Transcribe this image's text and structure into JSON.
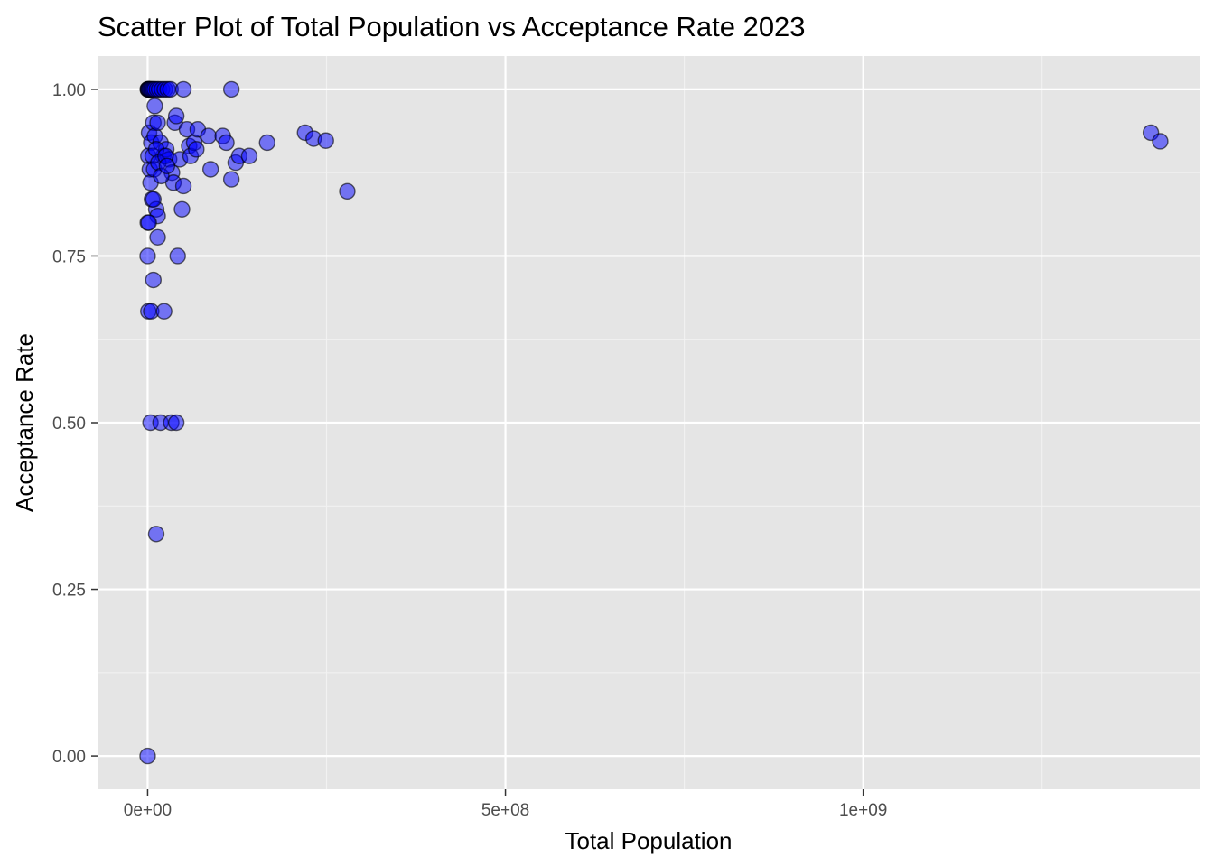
{
  "chart_data": {
    "type": "scatter",
    "title": "Scatter Plot of Total Population vs Acceptance Rate 2023",
    "xlabel": "Total Population",
    "ylabel": "Acceptance Rate",
    "xlim": [
      -70000000,
      1470000000
    ],
    "ylim": [
      -0.05,
      1.05
    ],
    "x_ticks": [
      0,
      500000000,
      1000000000
    ],
    "x_tick_labels": [
      "0e+00",
      "5e+08",
      "1e+09"
    ],
    "y_ticks": [
      0,
      0.25,
      0.5,
      0.75,
      1.0
    ],
    "y_tick_labels": [
      "0.00",
      "0.25",
      "0.50",
      "0.75",
      "1.00"
    ],
    "grid": true,
    "colors": {
      "panel": "#e5e5e5",
      "grid_major": "#ffffff",
      "grid_minor": "#f2f2f2",
      "point_fill": "#0000ff",
      "point_stroke": "#000000",
      "tick": "#333333"
    },
    "points": [
      {
        "x": 200000,
        "y": 1.0
      },
      {
        "x": 600000,
        "y": 1.0
      },
      {
        "x": 1000000,
        "y": 1.0
      },
      {
        "x": 2000000,
        "y": 1.0
      },
      {
        "x": 3000000,
        "y": 1.0
      },
      {
        "x": 4500000,
        "y": 1.0
      },
      {
        "x": 6000000,
        "y": 1.0
      },
      {
        "x": 8000000,
        "y": 1.0
      },
      {
        "x": 10000000,
        "y": 1.0
      },
      {
        "x": 13000000,
        "y": 1.0
      },
      {
        "x": 16000000,
        "y": 1.0
      },
      {
        "x": 20000000,
        "y": 1.0
      },
      {
        "x": 24000000,
        "y": 1.0
      },
      {
        "x": 28000000,
        "y": 1.0
      },
      {
        "x": 32000000,
        "y": 1.0
      },
      {
        "x": 50000000,
        "y": 1.0
      },
      {
        "x": 117000000,
        "y": 1.0
      },
      {
        "x": 2000000,
        "y": 0.935
      },
      {
        "x": 5000000,
        "y": 0.92
      },
      {
        "x": 8000000,
        "y": 0.95
      },
      {
        "x": 10000000,
        "y": 0.93
      },
      {
        "x": 14000000,
        "y": 0.95
      },
      {
        "x": 18000000,
        "y": 0.92
      },
      {
        "x": 22000000,
        "y": 0.9
      },
      {
        "x": 26000000,
        "y": 0.91
      },
      {
        "x": 30000000,
        "y": 0.895
      },
      {
        "x": 34000000,
        "y": 0.875
      },
      {
        "x": 36000000,
        "y": 0.86
      },
      {
        "x": 38000000,
        "y": 0.95
      },
      {
        "x": 40000000,
        "y": 0.96
      },
      {
        "x": 45000000,
        "y": 0.895
      },
      {
        "x": 48000000,
        "y": 0.82
      },
      {
        "x": 50000000,
        "y": 0.855
      },
      {
        "x": 55000000,
        "y": 0.94
      },
      {
        "x": 58000000,
        "y": 0.915
      },
      {
        "x": 60000000,
        "y": 0.9
      },
      {
        "x": 65000000,
        "y": 0.92
      },
      {
        "x": 68000000,
        "y": 0.91
      },
      {
        "x": 70000000,
        "y": 0.94
      },
      {
        "x": 85000000,
        "y": 0.93
      },
      {
        "x": 88000000,
        "y": 0.88
      },
      {
        "x": 105000000,
        "y": 0.93
      },
      {
        "x": 110000000,
        "y": 0.92
      },
      {
        "x": 117000000,
        "y": 0.865
      },
      {
        "x": 123000000,
        "y": 0.89
      },
      {
        "x": 128000000,
        "y": 0.9
      },
      {
        "x": 142000000,
        "y": 0.9
      },
      {
        "x": 167000000,
        "y": 0.92
      },
      {
        "x": 220000000,
        "y": 0.935
      },
      {
        "x": 232000000,
        "y": 0.926
      },
      {
        "x": 249000000,
        "y": 0.923
      },
      {
        "x": 279000000,
        "y": 0.847
      },
      {
        "x": 1402000000,
        "y": 0.935
      },
      {
        "x": 1415000000,
        "y": 0.922
      },
      {
        "x": 1000000,
        "y": 0.9
      },
      {
        "x": 3000000,
        "y": 0.88
      },
      {
        "x": 4000000,
        "y": 0.86
      },
      {
        "x": 6000000,
        "y": 0.835
      },
      {
        "x": 7000000,
        "y": 0.9
      },
      {
        "x": 9000000,
        "y": 0.88
      },
      {
        "x": 12000000,
        "y": 0.91
      },
      {
        "x": 15000000,
        "y": 0.89
      },
      {
        "x": 19000000,
        "y": 0.87
      },
      {
        "x": 25000000,
        "y": 0.9
      },
      {
        "x": 27000000,
        "y": 0.885
      },
      {
        "x": 10000000,
        "y": 0.975
      },
      {
        "x": 12000000,
        "y": 0.82
      },
      {
        "x": 14000000,
        "y": 0.81
      },
      {
        "x": 8000000,
        "y": 0.835
      },
      {
        "x": 200000,
        "y": 0.8
      },
      {
        "x": 1500000,
        "y": 0.8
      },
      {
        "x": 0,
        "y": 0.75
      },
      {
        "x": 42000000,
        "y": 0.75
      },
      {
        "x": 14000000,
        "y": 0.778
      },
      {
        "x": 8000000,
        "y": 0.714
      },
      {
        "x": 1000000,
        "y": 0.667
      },
      {
        "x": 5000000,
        "y": 0.667
      },
      {
        "x": 23000000,
        "y": 0.667
      },
      {
        "x": 4000000,
        "y": 0.5
      },
      {
        "x": 18000000,
        "y": 0.5
      },
      {
        "x": 33000000,
        "y": 0.5
      },
      {
        "x": 40000000,
        "y": 0.5
      },
      {
        "x": 12000000,
        "y": 0.333
      },
      {
        "x": 0,
        "y": 0.0
      }
    ]
  }
}
